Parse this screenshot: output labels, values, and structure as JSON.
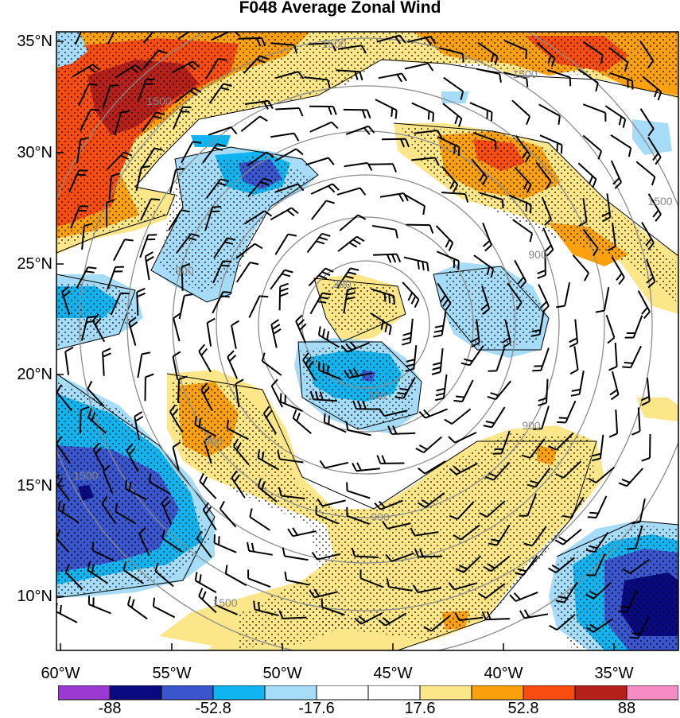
{
  "title": "F048 Average Zonal Wind",
  "lat_labels": [
    "35°N",
    "30°N",
    "25°N",
    "20°N",
    "15°N",
    "10°N"
  ],
  "lon_labels": [
    "60°W",
    "55°W",
    "50°W",
    "45°W",
    "40°W",
    "35°W"
  ],
  "colorbar": {
    "colors": [
      "#9b3ad3",
      "#0a0a80",
      "#3b55cc",
      "#0fb4f0",
      "#a6dcf7",
      "#ffffff",
      "#ffffff",
      "#fbe78a",
      "#fca10d",
      "#f94d0f",
      "#b5211a",
      "#f58cc4"
    ],
    "labels": [
      "-88",
      "-52.8",
      "-17.6",
      "17.6",
      "52.8",
      "88"
    ]
  },
  "contour_labels": [
    "300",
    "300",
    "900",
    "900",
    "900",
    "900",
    "900",
    "1500",
    "1500",
    "1500",
    "1500",
    "1500",
    "1500"
  ],
  "palette": {
    "neg_very": "#0a0a80",
    "neg_strong": "#3b55cc",
    "neg_mid": "#0fb4f0",
    "neg_light": "#a6dcf7",
    "pos_light": "#fbe78a",
    "pos_mid": "#fca10d",
    "pos_strong": "#f94d0f",
    "pos_very": "#b5211a",
    "contour_gray": "#8c8c8c"
  }
}
